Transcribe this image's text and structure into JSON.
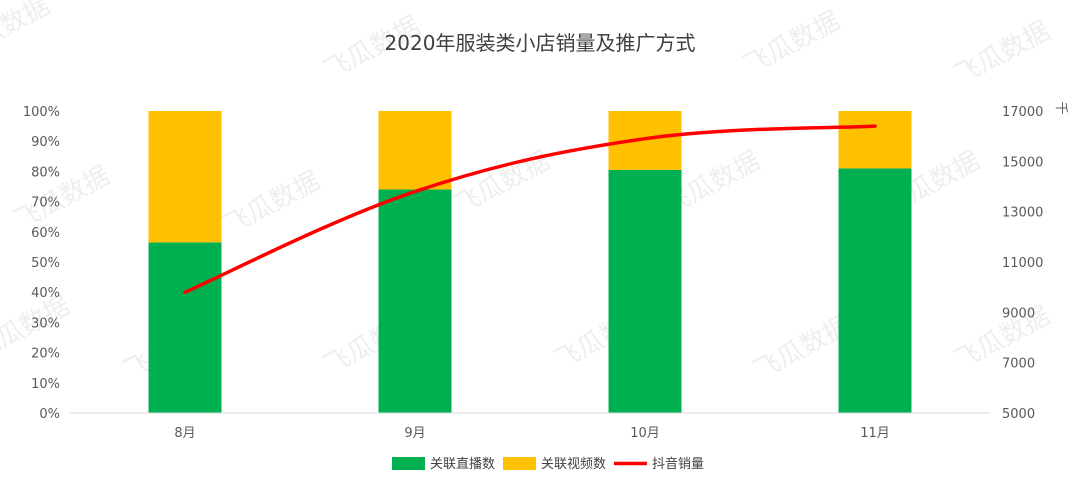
{
  "watermark": "飞瓜数据",
  "chart_data": {
    "type": "bar",
    "title": "2020年服装类小店销量及推广方式",
    "categories": [
      "8月",
      "9月",
      "10月",
      "11月"
    ],
    "series": [
      {
        "name": "关联直播数",
        "kind": "stacked-bar-percent",
        "axis": "left",
        "color": "#00B050",
        "values": [
          56.5,
          74,
          80.5,
          81
        ]
      },
      {
        "name": "关联视频数",
        "kind": "stacked-bar-percent",
        "axis": "left",
        "color": "#FFC000",
        "values": [
          43.5,
          26,
          19.5,
          19
        ]
      },
      {
        "name": "抖音销量",
        "kind": "line",
        "axis": "right",
        "color": "#FF0000",
        "values": [
          9800,
          13800,
          15900,
          16400
        ]
      }
    ],
    "y_left": {
      "ticks": [
        "0%",
        "10%",
        "20%",
        "30%",
        "40%",
        "50%",
        "60%",
        "70%",
        "80%",
        "90%",
        "100%"
      ],
      "ylim": [
        0,
        100
      ]
    },
    "y_right": {
      "ticks": [
        "5000",
        "7000",
        "9000",
        "11000",
        "13000",
        "15000",
        "17000"
      ],
      "ylim": [
        5000,
        17000
      ],
      "unit": "千"
    },
    "legend_position": "bottom",
    "grid": false
  }
}
